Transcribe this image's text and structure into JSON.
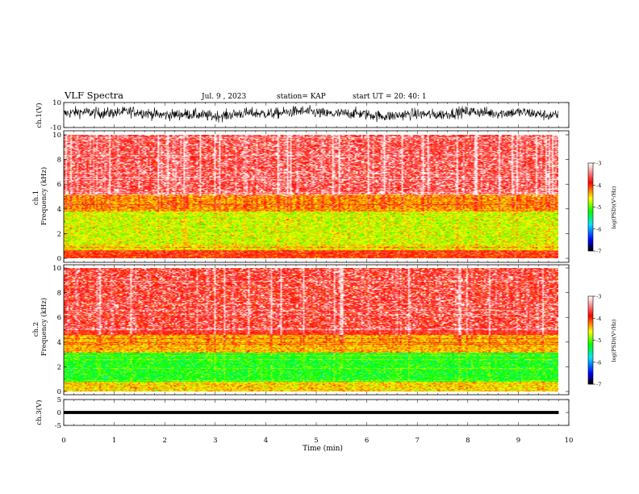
{
  "header": {
    "title": "VLF Spectra",
    "date": "Jul. 9 , 2023",
    "station": "station= KAP",
    "start": "start UT = 20: 40: 1"
  },
  "colors": {
    "waveform": "#000000",
    "background": "#ffffff",
    "colormap": [
      "#000000",
      "#0000ff",
      "#00ffff",
      "#00ff00",
      "#ffff00",
      "#ff0000",
      "#ffffff"
    ]
  },
  "chart_data": [
    {
      "type": "line",
      "name": "ch1-waveform",
      "ylabel": "ch.1(V)",
      "ylim": [
        -10,
        10
      ],
      "yticks": [
        "10",
        "-10"
      ],
      "xlim": [
        0,
        10
      ],
      "description_of_signal": "dense noisy waveform filling roughly -6 to 8 V",
      "value_range": [
        -6,
        8
      ]
    },
    {
      "type": "heatmap",
      "name": "ch1-spectrogram",
      "ylabel": "ch.1\nFrequency (kHz)",
      "ylabel_line1": "ch.1",
      "ylabel_line2": "Frequency (kHz)",
      "ylim": [
        0,
        10
      ],
      "yticks": [
        "0",
        "2",
        "4",
        "6",
        "8",
        "10"
      ],
      "xlim": [
        0,
        9.8
      ],
      "colorbar": {
        "label": "log(PSD)(V²/Hz)",
        "range": [
          -7,
          -3
        ],
        "ticks": [
          "-3",
          "-4",
          "-5",
          "-6",
          "-7"
        ]
      },
      "bands": [
        {
          "from": 0.0,
          "to": 0.7,
          "level": -4.0
        },
        {
          "from": 0.7,
          "to": 1.2,
          "level": -4.6
        },
        {
          "from": 1.2,
          "to": 3.8,
          "level": -4.7
        },
        {
          "from": 3.8,
          "to": 5.2,
          "level": -4.3
        },
        {
          "from": 5.2,
          "to": 10.0,
          "level": -3.7
        }
      ]
    },
    {
      "type": "heatmap",
      "name": "ch2-spectrogram",
      "ylabel_line1": "ch.2",
      "ylabel_line2": "Frequency (kHz)",
      "ylim": [
        0,
        10
      ],
      "yticks": [
        "0",
        "2",
        "4",
        "6",
        "8",
        "10"
      ],
      "xlim": [
        0,
        9.8
      ],
      "colorbar": {
        "label": "log(PSD)(V²/Hz)",
        "range": [
          -7,
          -3
        ],
        "ticks": [
          "-3",
          "-4",
          "-5",
          "-6",
          "-7"
        ]
      },
      "bands": [
        {
          "from": 0.0,
          "to": 0.8,
          "level": -4.5
        },
        {
          "from": 0.8,
          "to": 3.2,
          "level": -5.2
        },
        {
          "from": 3.2,
          "to": 4.6,
          "level": -4.4
        },
        {
          "from": 4.6,
          "to": 10.0,
          "level": -3.8
        }
      ]
    },
    {
      "type": "line",
      "name": "ch3-waveform",
      "ylabel": "ch.3(V)",
      "ylim": [
        -5,
        5
      ],
      "yticks": [
        "5",
        "0",
        "-5"
      ],
      "xlim": [
        0,
        10
      ],
      "band": [
        -0.6,
        0.6
      ]
    }
  ],
  "xaxis": {
    "label": "Time (min)",
    "ticks": [
      "0",
      "1",
      "2",
      "3",
      "4",
      "5",
      "6",
      "7",
      "8",
      "9",
      "10"
    ],
    "range": [
      0,
      10
    ]
  }
}
